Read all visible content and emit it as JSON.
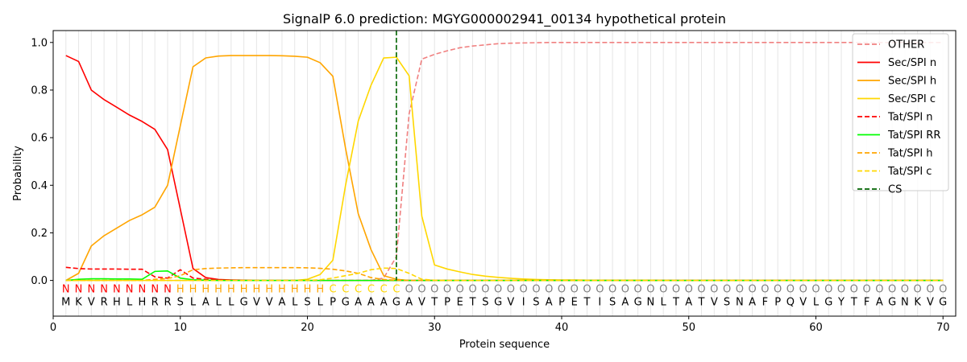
{
  "chart_data": {
    "type": "line",
    "title": "SignalP 6.0 prediction: MGYG000002941_00134 hypothetical protein",
    "xlabel": "Protein sequence",
    "ylabel": "Probability",
    "xlim": [
      0,
      71
    ],
    "ylim": [
      -0.15,
      1.05
    ],
    "xticks": [
      0,
      10,
      20,
      30,
      40,
      50,
      60,
      70
    ],
    "yticks": [
      0.0,
      0.2,
      0.4,
      0.6,
      0.8,
      1.0
    ],
    "ytick_labels": [
      "0.0",
      "0.2",
      "0.4",
      "0.6",
      "0.8",
      "1.0"
    ],
    "grid": "vertical lines at every residue",
    "legend_position": "top-right",
    "sequence": [
      "M",
      "K",
      "V",
      "R",
      "H",
      "L",
      "H",
      "R",
      "R",
      "S",
      "L",
      "A",
      "L",
      "L",
      "G",
      "V",
      "V",
      "A",
      "L",
      "S",
      "L",
      "P",
      "G",
      "A",
      "A",
      "A",
      "G",
      "A",
      "V",
      "T",
      "P",
      "E",
      "T",
      "S",
      "G",
      "V",
      "I",
      "S",
      "A",
      "P",
      "E",
      "T",
      "I",
      "S",
      "A",
      "G",
      "N",
      "L",
      "T",
      "A",
      "T",
      "V",
      "S",
      "N",
      "A",
      "F",
      "P",
      "Q",
      "V",
      "L",
      "G",
      "Y",
      "T",
      "F",
      "A",
      "G",
      "N",
      "K",
      "V",
      "G"
    ],
    "annotation": [
      "N",
      "N",
      "N",
      "N",
      "N",
      "N",
      "N",
      "N",
      "N",
      "H",
      "H",
      "H",
      "H",
      "H",
      "H",
      "H",
      "H",
      "H",
      "H",
      "H",
      "H",
      "C",
      "C",
      "C",
      "C",
      "C",
      "C",
      "O",
      "O",
      "O",
      "O",
      "O",
      "O",
      "O",
      "O",
      "O",
      "O",
      "O",
      "O",
      "O",
      "O",
      "O",
      "O",
      "O",
      "O",
      "O",
      "O",
      "O",
      "O",
      "O",
      "O",
      "O",
      "O",
      "O",
      "O",
      "O",
      "O",
      "O",
      "O",
      "O",
      "O",
      "O",
      "O",
      "O",
      "O",
      "O",
      "O",
      "O",
      "O",
      "O"
    ],
    "annotation_colors": {
      "N": "#ff0000",
      "H": "#ffa500",
      "C": "#ffd700",
      "O": "#808080"
    },
    "cleavage_site": 27,
    "series": [
      {
        "name": "OTHER",
        "color": "#f08080",
        "dash": true,
        "values": [
          0.0,
          0.0,
          0.0,
          0.0,
          0.0,
          0.0,
          0.0,
          0.0,
          0.0,
          0.0,
          0.0,
          0.0,
          0.0,
          0.0,
          0.0,
          0.0,
          0.0,
          0.0,
          0.0,
          0.0,
          0.0,
          0.0,
          0.0,
          0.0,
          0.0,
          0.01,
          0.1,
          0.7,
          0.93,
          0.95,
          0.965,
          0.978,
          0.985,
          0.99,
          0.995,
          0.997,
          0.998,
          0.999,
          1.0,
          1.0,
          1.0,
          1.0,
          1.0,
          1.0,
          1.0,
          1.0,
          1.0,
          1.0,
          1.0,
          1.0,
          1.0,
          1.0,
          1.0,
          1.0,
          1.0,
          1.0,
          1.0,
          1.0,
          1.0,
          1.0,
          1.0,
          1.0,
          1.0,
          1.0,
          1.0,
          1.0,
          1.0,
          1.0,
          1.0,
          1.0
        ]
      },
      {
        "name": "Sec/SPI n",
        "color": "#ff0000",
        "dash": false,
        "values": [
          0.945,
          0.92,
          0.8,
          0.76,
          0.728,
          0.695,
          0.668,
          0.635,
          0.55,
          0.3,
          0.05,
          0.012,
          0.004,
          0.002,
          0.001,
          0.0,
          0.0,
          0.0,
          0.0,
          0.0,
          0.0,
          0.0,
          0.0,
          0.0,
          0.0,
          0.0,
          0.0,
          0.0,
          0.0,
          0.0,
          0.0,
          0.0,
          0.0,
          0.0,
          0.0,
          0.0,
          0.0,
          0.0,
          0.0,
          0.0,
          0.0,
          0.0,
          0.0,
          0.0,
          0.0,
          0.0,
          0.0,
          0.0,
          0.0,
          0.0,
          0.0,
          0.0,
          0.0,
          0.0,
          0.0,
          0.0,
          0.0,
          0.0,
          0.0,
          0.0,
          0.0,
          0.0,
          0.0,
          0.0,
          0.0,
          0.0,
          0.0,
          0.0,
          0.0,
          0.0
        ]
      },
      {
        "name": "Sec/SPI h",
        "color": "#ffa500",
        "dash": false,
        "values": [
          0.0,
          0.03,
          0.145,
          0.188,
          0.22,
          0.252,
          0.276,
          0.308,
          0.4,
          0.65,
          0.898,
          0.935,
          0.943,
          0.945,
          0.945,
          0.945,
          0.945,
          0.944,
          0.942,
          0.938,
          0.915,
          0.858,
          0.555,
          0.28,
          0.13,
          0.02,
          0.005,
          0.0,
          0.0,
          0.0,
          0.0,
          0.0,
          0.0,
          0.0,
          0.0,
          0.0,
          0.0,
          0.0,
          0.0,
          0.0,
          0.0,
          0.0,
          0.0,
          0.0,
          0.0,
          0.0,
          0.0,
          0.0,
          0.0,
          0.0,
          0.0,
          0.0,
          0.0,
          0.0,
          0.0,
          0.0,
          0.0,
          0.0,
          0.0,
          0.0,
          0.0,
          0.0,
          0.0,
          0.0,
          0.0,
          0.0,
          0.0,
          0.0,
          0.0,
          0.0
        ]
      },
      {
        "name": "Sec/SPI c",
        "color": "#ffd700",
        "dash": false,
        "values": [
          0.0,
          0.0,
          0.0,
          0.0,
          0.0,
          0.0,
          0.0,
          0.0,
          0.0,
          0.0,
          0.0,
          0.0,
          0.0,
          0.0,
          0.0,
          0.0,
          0.0,
          0.0,
          0.0,
          0.005,
          0.025,
          0.085,
          0.4,
          0.67,
          0.82,
          0.935,
          0.938,
          0.86,
          0.27,
          0.065,
          0.048,
          0.036,
          0.025,
          0.018,
          0.013,
          0.009,
          0.006,
          0.004,
          0.003,
          0.002,
          0.002,
          0.001,
          0.001,
          0.001,
          0.001,
          0.001,
          0.001,
          0.0,
          0.0,
          0.0,
          0.0,
          0.0,
          0.0,
          0.0,
          0.0,
          0.0,
          0.0,
          0.0,
          0.0,
          0.0,
          0.0,
          0.0,
          0.0,
          0.0,
          0.0,
          0.0,
          0.0,
          0.0,
          0.0,
          0.0
        ]
      },
      {
        "name": "Tat/SPI n",
        "color": "#ff0000",
        "dash": true,
        "values": [
          0.055,
          0.05,
          0.048,
          0.048,
          0.048,
          0.047,
          0.047,
          0.015,
          0.01,
          0.045,
          0.01,
          0.005,
          0.002,
          0.001,
          0.0,
          0.0,
          0.0,
          0.0,
          0.0,
          0.0,
          0.0,
          0.0,
          0.0,
          0.0,
          0.0,
          0.0,
          0.0,
          0.0,
          0.0,
          0.0,
          0.0,
          0.0,
          0.0,
          0.0,
          0.0,
          0.0,
          0.0,
          0.0,
          0.0,
          0.0,
          0.0,
          0.0,
          0.0,
          0.0,
          0.0,
          0.0,
          0.0,
          0.0,
          0.0,
          0.0,
          0.0,
          0.0,
          0.0,
          0.0,
          0.0,
          0.0,
          0.0,
          0.0,
          0.0,
          0.0,
          0.0,
          0.0,
          0.0,
          0.0,
          0.0,
          0.0,
          0.0,
          0.0,
          0.0,
          0.0
        ]
      },
      {
        "name": "Tat/SPI RR",
        "color": "#00ff00",
        "dash": false,
        "values": [
          0.0,
          0.005,
          0.007,
          0.007,
          0.006,
          0.006,
          0.005,
          0.038,
          0.04,
          0.01,
          0.003,
          0.001,
          0.0,
          0.0,
          0.0,
          0.0,
          0.0,
          0.0,
          0.0,
          0.0,
          0.0,
          0.0,
          0.0,
          0.0,
          0.0,
          0.0,
          0.0,
          0.0,
          0.0,
          0.0,
          0.0,
          0.0,
          0.0,
          0.0,
          0.0,
          0.0,
          0.0,
          0.0,
          0.0,
          0.0,
          0.0,
          0.0,
          0.0,
          0.0,
          0.0,
          0.0,
          0.0,
          0.0,
          0.0,
          0.0,
          0.0,
          0.0,
          0.0,
          0.0,
          0.0,
          0.0,
          0.0,
          0.0,
          0.0,
          0.0,
          0.0,
          0.0,
          0.0,
          0.0,
          0.0,
          0.0,
          0.0,
          0.0,
          0.0,
          0.0
        ]
      },
      {
        "name": "Tat/SPI h",
        "color": "#ffa500",
        "dash": true,
        "values": [
          0.0,
          0.0,
          0.0,
          0.0,
          0.0,
          0.0,
          0.0,
          0.005,
          0.008,
          0.02,
          0.045,
          0.05,
          0.052,
          0.053,
          0.054,
          0.054,
          0.054,
          0.054,
          0.054,
          0.053,
          0.051,
          0.047,
          0.04,
          0.03,
          0.012,
          0.004,
          0.001,
          0.0,
          0.0,
          0.0,
          0.0,
          0.0,
          0.0,
          0.0,
          0.0,
          0.0,
          0.0,
          0.0,
          0.0,
          0.0,
          0.0,
          0.0,
          0.0,
          0.0,
          0.0,
          0.0,
          0.0,
          0.0,
          0.0,
          0.0,
          0.0,
          0.0,
          0.0,
          0.0,
          0.0,
          0.0,
          0.0,
          0.0,
          0.0,
          0.0,
          0.0,
          0.0,
          0.0,
          0.0,
          0.0,
          0.0,
          0.0,
          0.0,
          0.0,
          0.0
        ]
      },
      {
        "name": "Tat/SPI c",
        "color": "#ffd700",
        "dash": true,
        "values": [
          0.0,
          0.0,
          0.0,
          0.0,
          0.0,
          0.0,
          0.0,
          0.0,
          0.0,
          0.0,
          0.0,
          0.0,
          0.0,
          0.0,
          0.0,
          0.0,
          0.0,
          0.0,
          0.0,
          0.0,
          0.003,
          0.01,
          0.02,
          0.03,
          0.045,
          0.052,
          0.05,
          0.03,
          0.005,
          0.001,
          0.0,
          0.0,
          0.0,
          0.0,
          0.0,
          0.0,
          0.0,
          0.0,
          0.0,
          0.0,
          0.0,
          0.0,
          0.0,
          0.0,
          0.0,
          0.0,
          0.0,
          0.0,
          0.0,
          0.0,
          0.0,
          0.0,
          0.0,
          0.0,
          0.0,
          0.0,
          0.0,
          0.0,
          0.0,
          0.0,
          0.0,
          0.0,
          0.0,
          0.0,
          0.0,
          0.0,
          0.0,
          0.0,
          0.0,
          0.0
        ]
      }
    ],
    "legend": [
      {
        "name": "OTHER",
        "color": "#f08080",
        "dash": true
      },
      {
        "name": "Sec/SPI n",
        "color": "#ff0000",
        "dash": false
      },
      {
        "name": "Sec/SPI h",
        "color": "#ffa500",
        "dash": false
      },
      {
        "name": "Sec/SPI c",
        "color": "#ffd700",
        "dash": false
      },
      {
        "name": "Tat/SPI n",
        "color": "#ff0000",
        "dash": true
      },
      {
        "name": "Tat/SPI RR",
        "color": "#00ff00",
        "dash": false
      },
      {
        "name": "Tat/SPI h",
        "color": "#ffa500",
        "dash": true
      },
      {
        "name": "Tat/SPI c",
        "color": "#ffd700",
        "dash": true
      },
      {
        "name": "CS",
        "color": "#006400",
        "dash": true
      }
    ]
  }
}
